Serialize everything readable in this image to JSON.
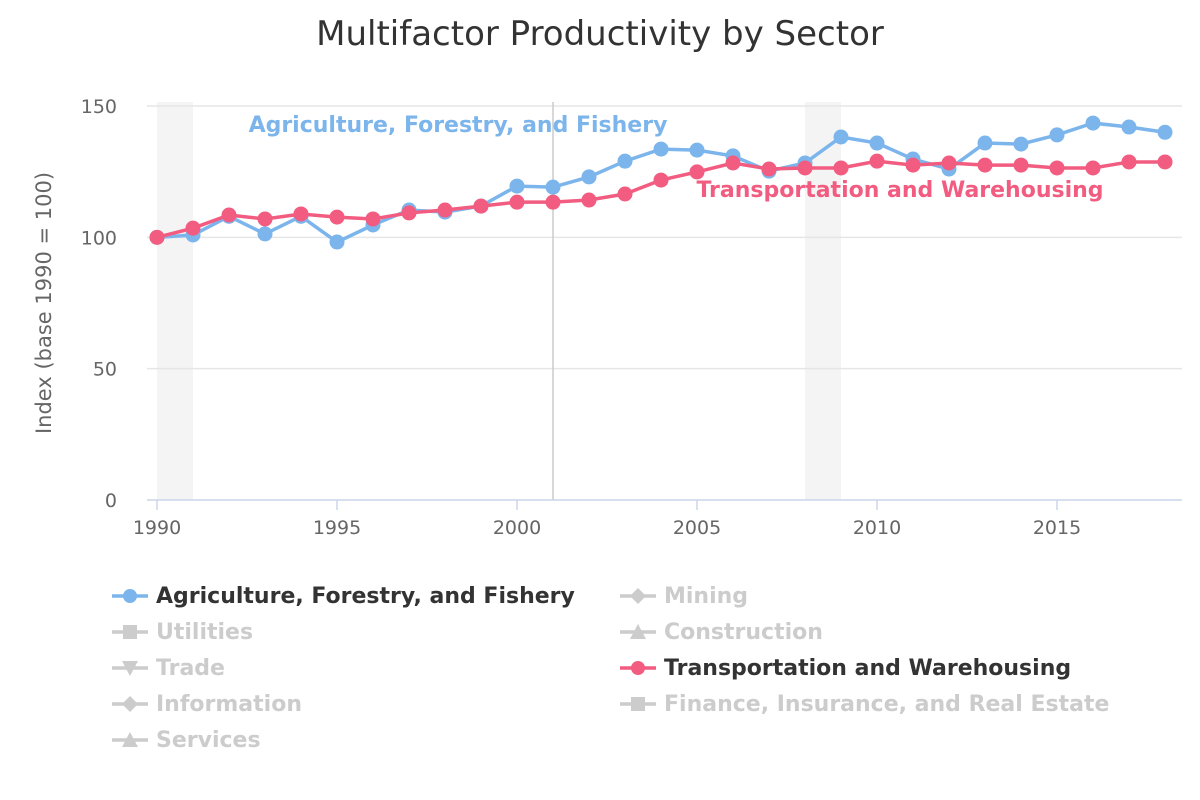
{
  "chart_data": {
    "type": "line",
    "title": "Multifactor Productivity by Sector",
    "xlabel": "",
    "ylabel": "Index (base 1990 = 100)",
    "xlim": [
      1990,
      2018
    ],
    "ylim": [
      0,
      150
    ],
    "x_ticks": [
      "1990",
      "1995",
      "2000",
      "2005",
      "2010",
      "2015"
    ],
    "y_ticks": [
      "0",
      "50",
      "100",
      "150"
    ],
    "grid": true,
    "plot_bands": [
      [
        1990,
        1991
      ],
      [
        2008,
        2009
      ]
    ],
    "plot_lines": [
      2001
    ],
    "x": [
      1990,
      1991,
      1992,
      1993,
      1994,
      1995,
      1996,
      1997,
      1998,
      1999,
      2000,
      2001,
      2002,
      2003,
      2004,
      2005,
      2006,
      2007,
      2008,
      2009,
      2010,
      2011,
      2012,
      2013,
      2014,
      2015,
      2016,
      2017,
      2018
    ],
    "series": [
      {
        "name": "Agriculture, Forestry, and Fishery",
        "color": "#7cb5ec",
        "visible": true,
        "marker": "circle",
        "values": [
          100,
          100.9,
          108,
          101.3,
          108,
          98.2,
          104.7,
          110.4,
          109.6,
          111.9,
          119.5,
          119.1,
          123,
          129,
          133.6,
          133.2,
          131,
          125.2,
          128.3,
          138.2,
          135.9,
          129.8,
          126,
          135.9,
          135.5,
          139,
          143.5,
          142,
          140
        ]
      },
      {
        "name": "Mining",
        "color": "#cccccc",
        "visible": false,
        "marker": "diamond"
      },
      {
        "name": "Utilities",
        "color": "#cccccc",
        "visible": false,
        "marker": "square"
      },
      {
        "name": "Construction",
        "color": "#cccccc",
        "visible": false,
        "marker": "triangle"
      },
      {
        "name": "Trade",
        "color": "#cccccc",
        "visible": false,
        "marker": "triangle-down"
      },
      {
        "name": "Transportation and Warehousing",
        "color": "#f15c80",
        "visible": true,
        "marker": "circle",
        "values": [
          100,
          103.5,
          108.5,
          107,
          108.9,
          107.7,
          107,
          109.3,
          110.4,
          111.9,
          113.4,
          113.4,
          114.2,
          116.5,
          121.8,
          124.9,
          128.3,
          126,
          126.4,
          126.4,
          129,
          127.5,
          128.3,
          127.5,
          127.5,
          126.4,
          126.4,
          128.7,
          128.7
        ]
      },
      {
        "name": "Information",
        "color": "#cccccc",
        "visible": false,
        "marker": "diamond"
      },
      {
        "name": "Finance, Insurance, and Real Estate",
        "color": "#cccccc",
        "visible": false,
        "marker": "square"
      },
      {
        "name": "Services",
        "color": "#cccccc",
        "visible": false,
        "marker": "triangle"
      }
    ],
    "annotations": [
      "Agriculture, Forestry, and Fishery",
      "Transportation and Warehousing"
    ],
    "legend_position": "bottom"
  }
}
